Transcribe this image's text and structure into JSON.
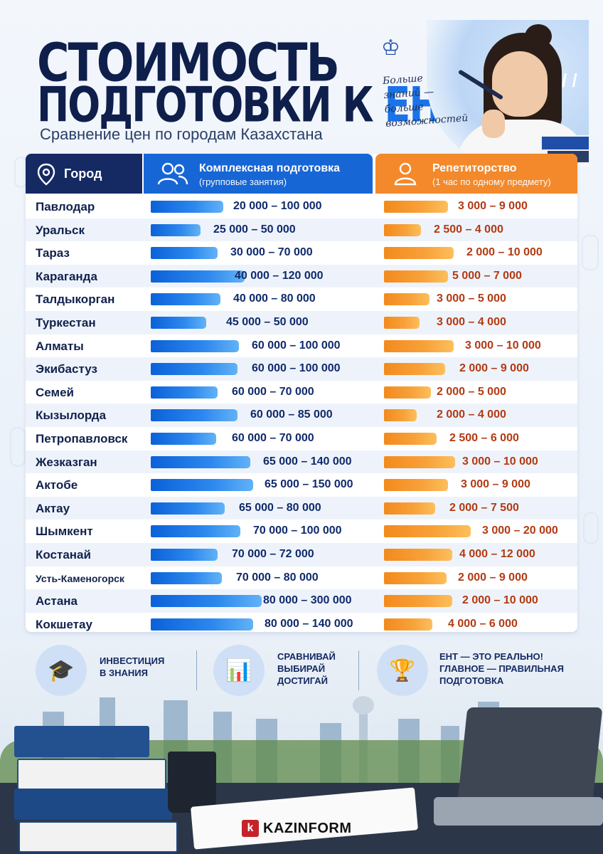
{
  "header": {
    "title_line1": "СТОИМОСТЬ",
    "title_line2": "ПОДГОТОВКИ К",
    "title_highlight": "ЕНТ",
    "subtitle": "Сравнение цен по городам Казахстана"
  },
  "slogan": {
    "line1": "Больше",
    "line2": "знаний —",
    "line3": "больше",
    "line4": "возможностей"
  },
  "table": {
    "headers": {
      "city": "Город",
      "group_title": "Комплексная подготовка",
      "group_sub": "(групповые занятия)",
      "tutor_title": "Репетиторство",
      "tutor_sub": "(1 час по одному предмету)"
    },
    "rows": [
      {
        "city": "Павлодар",
        "group": "20 000 – 100 000",
        "tutor": "3 000 – 9 000"
      },
      {
        "city": "Уральск",
        "group": "25 000 – 50 000",
        "tutor": "2 500 – 4 000"
      },
      {
        "city": "Тараз",
        "group": "30 000 – 70 000",
        "tutor": "2 000 – 10 000"
      },
      {
        "city": "Караганда",
        "group": "40 000 – 120 000",
        "tutor": "5 000 – 7 000"
      },
      {
        "city": "Талдыкорган",
        "group": "40 000 – 80 000",
        "tutor": "3 000 – 5 000"
      },
      {
        "city": "Туркестан",
        "group": "45 000 – 50 000",
        "tutor": "3 000 – 4 000"
      },
      {
        "city": "Алматы",
        "group": "60 000 – 100 000",
        "tutor": "3 000 – 10 000"
      },
      {
        "city": "Экибастуз",
        "group": "60 000 – 100 000",
        "tutor": "2 000 – 9 000"
      },
      {
        "city": "Семей",
        "group": "60 000 – 70 000",
        "tutor": "2 000 – 5 000"
      },
      {
        "city": "Кызылорда",
        "group": "60 000 – 85 000",
        "tutor": "2 000 – 4 000"
      },
      {
        "city": "Петропавловск",
        "group": "60 000 – 70 000",
        "tutor": "2 500 – 6 000"
      },
      {
        "city": "Жезказган",
        "group": "65 000 – 140 000",
        "tutor": "3 000 – 10 000"
      },
      {
        "city": "Актобе",
        "group": "65 000 – 150 000",
        "tutor": "3 000 – 9 000"
      },
      {
        "city": "Актау",
        "group": "65 000 – 80 000",
        "tutor": "2 000 – 7 500"
      },
      {
        "city": "Шымкент",
        "group": "70 000 – 100 000",
        "tutor": "3 000 – 20 000"
      },
      {
        "city": "Костанай",
        "group": "70 000 – 72 000",
        "tutor": "4 000 – 12 000"
      },
      {
        "city": "Усть-Каменогорск",
        "group": "70 000 – 80 000",
        "tutor": "2 000 – 9 000"
      },
      {
        "city": "Астана",
        "group": "80 000 – 300 000",
        "tutor": "2 000 – 10 000"
      },
      {
        "city": "Кокшетау",
        "group": "80 000 – 140 000",
        "tutor": "4 000 – 6 000"
      }
    ]
  },
  "info": [
    {
      "icon": "graduation-cap-icon",
      "glyph": "🎓",
      "line1": "ИНВЕСТИЦИЯ",
      "line2": "В ЗНАНИЯ",
      "line3": ""
    },
    {
      "icon": "growth-chart-icon",
      "glyph": "📊",
      "line1": "СРАВНИВАЙ",
      "line2": "ВЫБИРАЙ",
      "line3": "ДОСТИГАЙ"
    },
    {
      "icon": "trophy-icon",
      "glyph": "🏆",
      "line1": "ЕНТ — ЭТО РЕАЛЬНО!",
      "line2": "ГЛАВНОЕ — ПРАВИЛЬНАЯ",
      "line3": "ПОДГОТОВКА"
    }
  ],
  "brand": {
    "mark": "k",
    "name": "KAZINFORM"
  },
  "colors": {
    "navy": "#152a63",
    "blue": "#1766d6",
    "orange": "#f3892b",
    "brand_red": "#c4232b"
  }
}
